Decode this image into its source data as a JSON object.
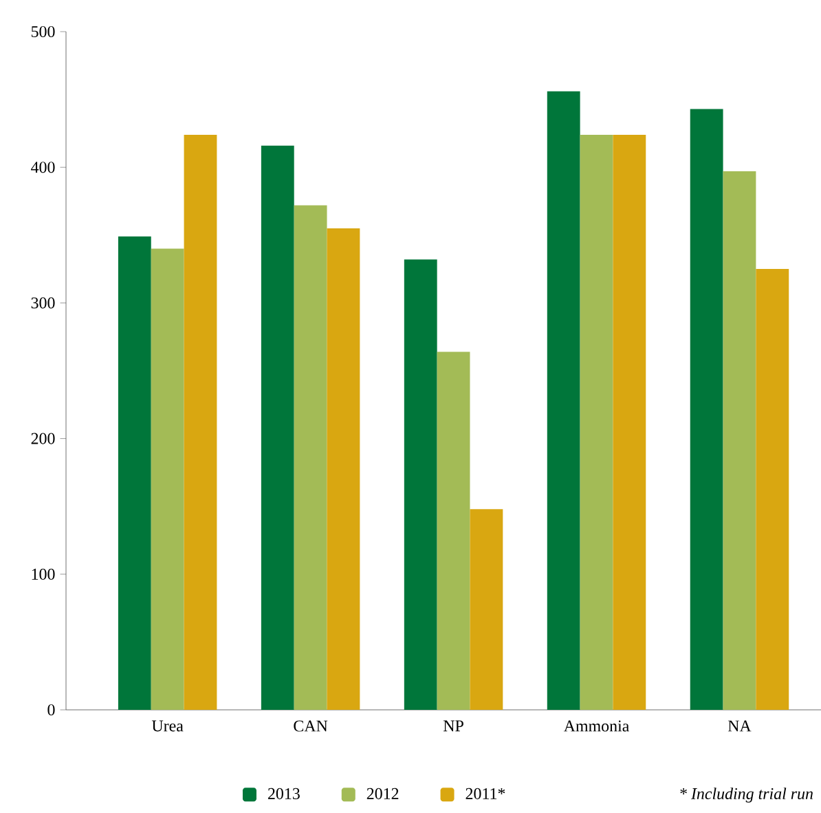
{
  "chart_data": {
    "type": "bar",
    "categories": [
      "Urea",
      "CAN",
      "NP",
      "Ammonia",
      "NA"
    ],
    "series": [
      {
        "name": "2013",
        "color": "#00763a",
        "values": [
          349,
          416,
          332,
          456,
          443
        ]
      },
      {
        "name": "2012",
        "color": "#a3bb56",
        "values": [
          340,
          372,
          264,
          424,
          397
        ]
      },
      {
        "name": "2011*",
        "color": "#d9a711",
        "values": [
          424,
          355,
          148,
          424,
          325
        ]
      }
    ],
    "ylim": [
      0,
      500
    ],
    "yticks": [
      0,
      100,
      200,
      300,
      400,
      500
    ],
    "grid": false,
    "legend": "bottom",
    "annotations": [
      "* Including trial run"
    ]
  }
}
